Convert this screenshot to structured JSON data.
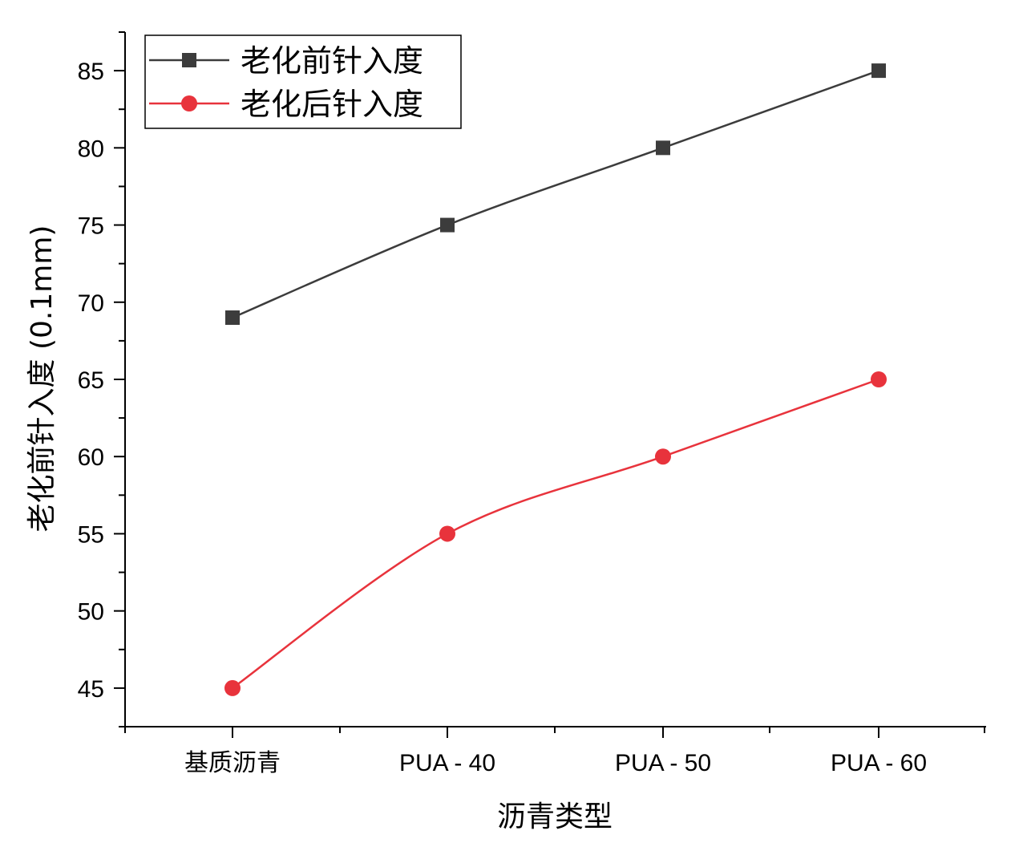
{
  "chart_data": {
    "type": "line",
    "categories": [
      "基质沥青",
      "PUA - 40",
      "PUA - 50",
      "PUA - 60"
    ],
    "series": [
      {
        "name": "老化前针入度",
        "values": [
          69,
          75,
          80,
          85
        ],
        "color": "#3c3c3c",
        "marker": "square"
      },
      {
        "name": "老化后针入度",
        "values": [
          45,
          55,
          60,
          65
        ],
        "color": "#e8333c",
        "marker": "circle"
      }
    ],
    "xlabel": "沥青类型",
    "ylabel": "老化前针入度 (0.1mm)",
    "ylim": [
      42.5,
      87.5
    ],
    "yticks": [
      45,
      50,
      55,
      60,
      65,
      70,
      75,
      80,
      85
    ],
    "ytick_labels": [
      "45",
      "50",
      "55",
      "60",
      "65",
      "70",
      "75",
      "80",
      "85"
    ],
    "grid": false,
    "legend_position": "top-left"
  }
}
